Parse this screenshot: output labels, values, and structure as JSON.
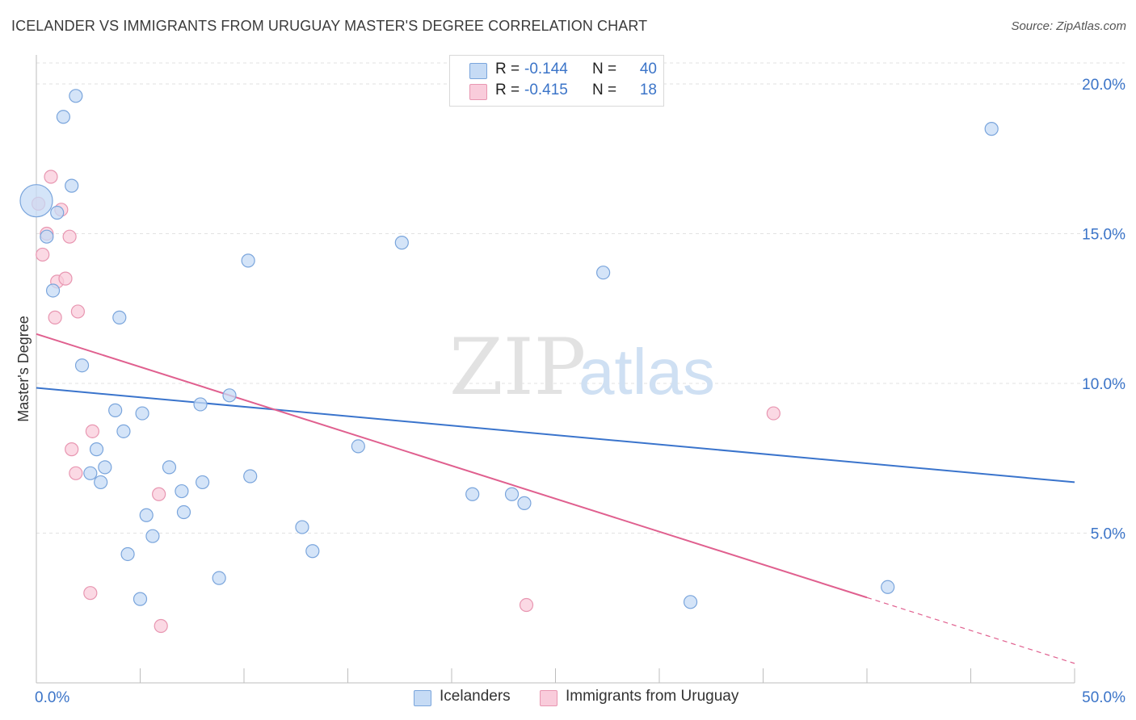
{
  "title": "ICELANDER VS IMMIGRANTS FROM URUGUAY MASTER'S DEGREE CORRELATION CHART",
  "source": "Source: ZipAtlas.com",
  "watermark": {
    "zip": "ZIP",
    "atlas": "atlas"
  },
  "legend_top": [
    {
      "r_label": "R =",
      "r_value": "-0.144",
      "n_label": "N =",
      "n_value": "40"
    },
    {
      "r_label": "R =",
      "r_value": "-0.415",
      "n_label": "N =",
      "n_value": "18"
    }
  ],
  "legend_bottom": [
    "Icelanders",
    "Immigrants from Uruguay"
  ],
  "colors": {
    "blue_fill": "#c6dbf5",
    "blue_stroke": "#7aa5dc",
    "blue_line": "#3a74cc",
    "pink_fill": "#f9ccdb",
    "pink_stroke": "#e896b1",
    "pink_line": "#e0608f",
    "tick_label": "#3b74c8",
    "grid": "#e2e2e2"
  },
  "chart_data": {
    "type": "scatter",
    "title": "ICELANDER VS IMMIGRANTS FROM URUGUAY MASTER'S DEGREE CORRELATION CHART",
    "xlabel": "",
    "ylabel": "Master's Degree",
    "xlim": [
      0,
      50
    ],
    "ylim": [
      0,
      20.7
    ],
    "x_tick_labels": [
      "0.0%",
      "50.0%"
    ],
    "y_ticks": [
      5,
      10,
      15,
      20
    ],
    "y_tick_labels": [
      "5.0%",
      "10.0%",
      "15.0%",
      "20.0%"
    ],
    "grid": true,
    "series": [
      {
        "name": "Icelanders",
        "r": -0.144,
        "n": 40,
        "trend": {
          "x0": 0,
          "y0": 9.85,
          "x1": 50,
          "y1": 6.7
        },
        "points": [
          [
            0.0,
            16.1,
            "big"
          ],
          [
            1.9,
            19.6
          ],
          [
            1.3,
            18.9
          ],
          [
            1.7,
            16.6
          ],
          [
            1.0,
            15.7
          ],
          [
            0.5,
            14.9
          ],
          [
            0.8,
            13.1
          ],
          [
            4.0,
            12.2
          ],
          [
            2.2,
            10.6
          ],
          [
            3.8,
            9.1
          ],
          [
            5.1,
            9.0
          ],
          [
            7.9,
            9.3
          ],
          [
            9.3,
            9.6
          ],
          [
            4.2,
            8.4
          ],
          [
            2.9,
            7.8
          ],
          [
            3.3,
            7.2
          ],
          [
            2.6,
            7.0
          ],
          [
            3.1,
            6.7
          ],
          [
            6.4,
            7.2
          ],
          [
            8.0,
            6.7
          ],
          [
            10.3,
            6.9
          ],
          [
            7.0,
            6.4
          ],
          [
            7.1,
            5.7
          ],
          [
            5.3,
            5.6
          ],
          [
            5.6,
            4.9
          ],
          [
            4.4,
            4.3
          ],
          [
            5.0,
            2.8
          ],
          [
            8.8,
            3.5
          ],
          [
            12.8,
            5.2
          ],
          [
            13.3,
            4.4
          ],
          [
            10.2,
            14.1
          ],
          [
            17.6,
            14.7
          ],
          [
            27.3,
            13.7
          ],
          [
            15.5,
            7.9
          ],
          [
            21.0,
            6.3
          ],
          [
            22.9,
            6.3
          ],
          [
            23.5,
            6.0
          ],
          [
            31.5,
            2.7
          ],
          [
            41.0,
            3.2
          ],
          [
            46.0,
            18.5
          ]
        ]
      },
      {
        "name": "Immigrants from Uruguay",
        "r": -0.415,
        "n": 18,
        "trend": {
          "x0": 0,
          "y0": 11.65,
          "x1": 40.0,
          "y1": 2.85,
          "dash_x1": 50,
          "dash_y1": 0.65
        },
        "points": [
          [
            0.1,
            16.0
          ],
          [
            0.7,
            16.9
          ],
          [
            1.2,
            15.8
          ],
          [
            0.5,
            15.0
          ],
          [
            1.6,
            14.9
          ],
          [
            0.3,
            14.3
          ],
          [
            1.0,
            13.4
          ],
          [
            1.4,
            13.5
          ],
          [
            0.9,
            12.2
          ],
          [
            2.0,
            12.4
          ],
          [
            2.7,
            8.4
          ],
          [
            1.7,
            7.8
          ],
          [
            1.9,
            7.0
          ],
          [
            5.9,
            6.3
          ],
          [
            2.6,
            3.0
          ],
          [
            6.0,
            1.9
          ],
          [
            23.6,
            2.6
          ],
          [
            35.5,
            9.0
          ]
        ]
      }
    ]
  }
}
